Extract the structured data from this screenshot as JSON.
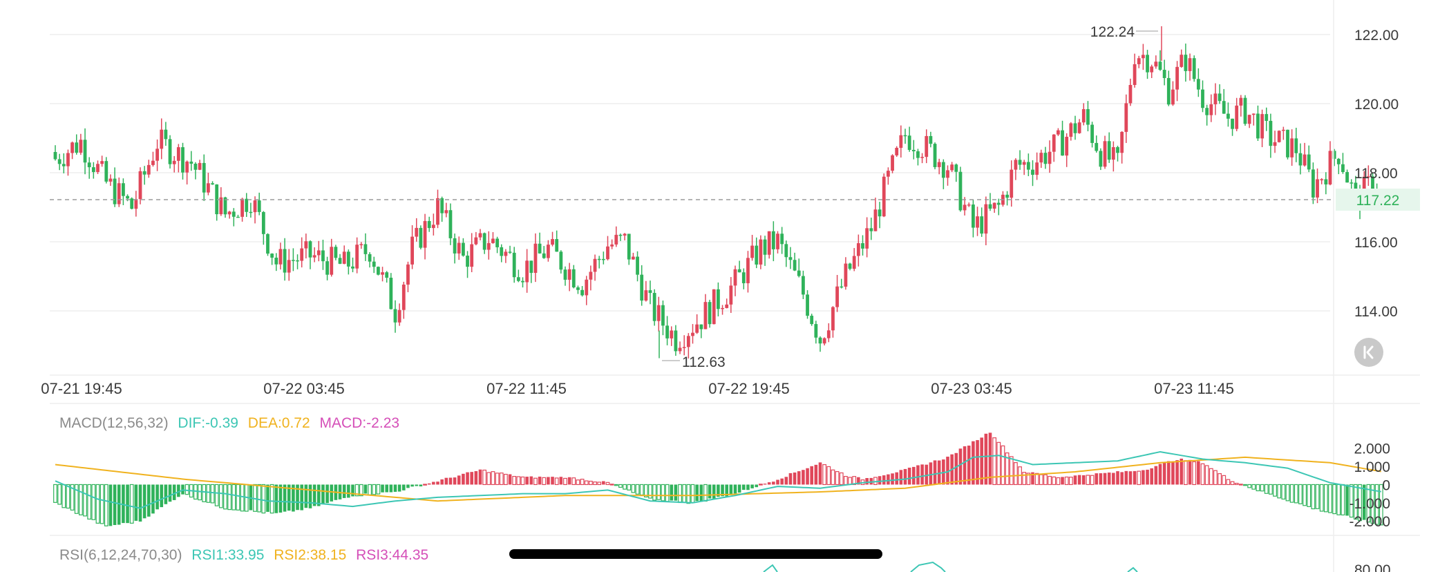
{
  "colors": {
    "up": "#e0475a",
    "down": "#2fb25a",
    "dif": "#3cc6b4",
    "dea": "#f0b21e",
    "macd": "#d54fb8",
    "grid": "#eeeeee",
    "text": "#3a3a3a",
    "label": "#8a8a8a",
    "price_line": "#9a9a9a",
    "price_tag_bg": "#e6f6ec",
    "price_tag_text": "#2fb25a"
  },
  "current_price_label": "117.22",
  "max_label": "122.24",
  "min_label": "112.63",
  "macd_header": {
    "name": "MACD(12,56,32)",
    "dif": "DIF:-0.39",
    "dea": "DEA:0.72",
    "macd": "MACD:-2.23"
  },
  "rsi_header": {
    "name": "RSI(6,12,24,70,30)",
    "rsi1": "RSI1:33.95",
    "rsi2": "RSI2:38.15",
    "rsi3": "RSI3:44.35"
  },
  "rsi_partial_tick": "80.00",
  "icons": {
    "scroll_to_latest": "chevron-left-bar-icon",
    "home_indicator": "home-indicator-bar"
  },
  "chart_data": {
    "type": "candlestick",
    "price_axis": {
      "ticks": [
        "122.00",
        "120.00",
        "118.00",
        "116.00",
        "114.00"
      ],
      "tick_values": [
        122,
        120,
        118,
        116,
        114
      ],
      "range": [
        112.2,
        122.6
      ]
    },
    "time_axis": {
      "labels": [
        "07-21 19:45",
        "07-22 03:45",
        "07-22 11:45",
        "07-22 19:45",
        "07-23 03:45",
        "07-23 11:45"
      ]
    },
    "current_price": 117.22,
    "high": 122.24,
    "low": 112.63,
    "anchors": [
      [
        0,
        118.4
      ],
      [
        6,
        118.9
      ],
      [
        12,
        117.7
      ],
      [
        18,
        117.0
      ],
      [
        24,
        118.9
      ],
      [
        32,
        118.3
      ],
      [
        40,
        116.8
      ],
      [
        46,
        117.3
      ],
      [
        52,
        115.4
      ],
      [
        60,
        115.6
      ],
      [
        68,
        115.3
      ],
      [
        74,
        115.8
      ],
      [
        80,
        114.0
      ],
      [
        84,
        115.8
      ],
      [
        90,
        117.0
      ],
      [
        96,
        115.5
      ],
      [
        102,
        116.1
      ],
      [
        110,
        115.2
      ],
      [
        116,
        115.8
      ],
      [
        124,
        114.8
      ],
      [
        130,
        115.9
      ],
      [
        134,
        116.0
      ],
      [
        140,
        114.1
      ],
      [
        146,
        113.2
      ],
      [
        152,
        113.8
      ],
      [
        160,
        114.8
      ],
      [
        166,
        115.8
      ],
      [
        170,
        116.0
      ],
      [
        176,
        114.5
      ],
      [
        180,
        113.2
      ],
      [
        186,
        115.0
      ],
      [
        192,
        116.4
      ],
      [
        196,
        117.8
      ],
      [
        200,
        119.1
      ],
      [
        204,
        118.8
      ],
      [
        210,
        118.2
      ],
      [
        216,
        116.4
      ],
      [
        222,
        117.0
      ],
      [
        226,
        118.2
      ],
      [
        230,
        118.3
      ],
      [
        236,
        118.8
      ],
      [
        242,
        119.6
      ],
      [
        246,
        118.6
      ],
      [
        250,
        118.2
      ],
      [
        254,
        121.5
      ],
      [
        258,
        121.3
      ],
      [
        262,
        120.4
      ],
      [
        266,
        121.3
      ],
      [
        270,
        120.2
      ],
      [
        276,
        119.6
      ],
      [
        280,
        119.8
      ],
      [
        286,
        119.0
      ],
      [
        292,
        118.7
      ],
      [
        296,
        117.6
      ],
      [
        302,
        118.6
      ],
      [
        306,
        117.2
      ],
      [
        310,
        117.7
      ],
      [
        312,
        117.22
      ]
    ],
    "macd": {
      "ticks": [
        "2.000",
        "1.000",
        "0",
        "-1.000",
        "-2.000"
      ],
      "tick_values": [
        2,
        1,
        0,
        -1,
        -2
      ],
      "range": [
        -2.6,
        2.9
      ],
      "dif_anchors": [
        [
          0,
          0.2
        ],
        [
          10,
          -0.8
        ],
        [
          20,
          -1.3
        ],
        [
          30,
          -0.3
        ],
        [
          40,
          -0.5
        ],
        [
          50,
          -0.9
        ],
        [
          60,
          -1.0
        ],
        [
          70,
          -1.2
        ],
        [
          80,
          -0.9
        ],
        [
          90,
          -0.7
        ],
        [
          100,
          -0.6
        ],
        [
          110,
          -0.5
        ],
        [
          120,
          -0.5
        ],
        [
          130,
          -0.3
        ],
        [
          140,
          -0.9
        ],
        [
          150,
          -1.0
        ],
        [
          160,
          -0.6
        ],
        [
          170,
          -0.1
        ],
        [
          180,
          -0.2
        ],
        [
          190,
          0.1
        ],
        [
          200,
          0.3
        ],
        [
          210,
          0.7
        ],
        [
          216,
          1.5
        ],
        [
          222,
          1.6
        ],
        [
          230,
          1.1
        ],
        [
          240,
          1.2
        ],
        [
          250,
          1.3
        ],
        [
          260,
          1.8
        ],
        [
          270,
          1.4
        ],
        [
          280,
          1.2
        ],
        [
          290,
          0.9
        ],
        [
          300,
          0.1
        ],
        [
          312,
          -0.39
        ]
      ],
      "dea_anchors": [
        [
          0,
          1.1
        ],
        [
          30,
          0.3
        ],
        [
          60,
          -0.3
        ],
        [
          90,
          -0.9
        ],
        [
          120,
          -0.6
        ],
        [
          150,
          -0.6
        ],
        [
          180,
          -0.4
        ],
        [
          200,
          -0.2
        ],
        [
          220,
          0.4
        ],
        [
          240,
          0.7
        ],
        [
          260,
          1.2
        ],
        [
          280,
          1.5
        ],
        [
          300,
          1.2
        ],
        [
          312,
          0.72
        ]
      ],
      "hist_anchors": [
        [
          0,
          -1.0
        ],
        [
          12,
          -2.3
        ],
        [
          20,
          -2.0
        ],
        [
          30,
          -0.5
        ],
        [
          40,
          -1.3
        ],
        [
          52,
          -1.6
        ],
        [
          60,
          -1.3
        ],
        [
          70,
          -0.6
        ],
        [
          80,
          -0.4
        ],
        [
          90,
          0.2
        ],
        [
          100,
          0.8
        ],
        [
          110,
          0.4
        ],
        [
          120,
          0.4
        ],
        [
          130,
          0.1
        ],
        [
          140,
          -0.8
        ],
        [
          150,
          -1.0
        ],
        [
          160,
          -0.5
        ],
        [
          170,
          0.3
        ],
        [
          180,
          1.2
        ],
        [
          186,
          0.5
        ],
        [
          190,
          0.3
        ],
        [
          200,
          0.8
        ],
        [
          210,
          1.5
        ],
        [
          220,
          2.9
        ],
        [
          228,
          0.7
        ],
        [
          236,
          0.4
        ],
        [
          246,
          0.6
        ],
        [
          256,
          0.8
        ],
        [
          264,
          1.4
        ],
        [
          270,
          1.2
        ],
        [
          276,
          0.3
        ],
        [
          284,
          -0.4
        ],
        [
          296,
          -1.3
        ],
        [
          312,
          -2.23
        ]
      ]
    }
  }
}
